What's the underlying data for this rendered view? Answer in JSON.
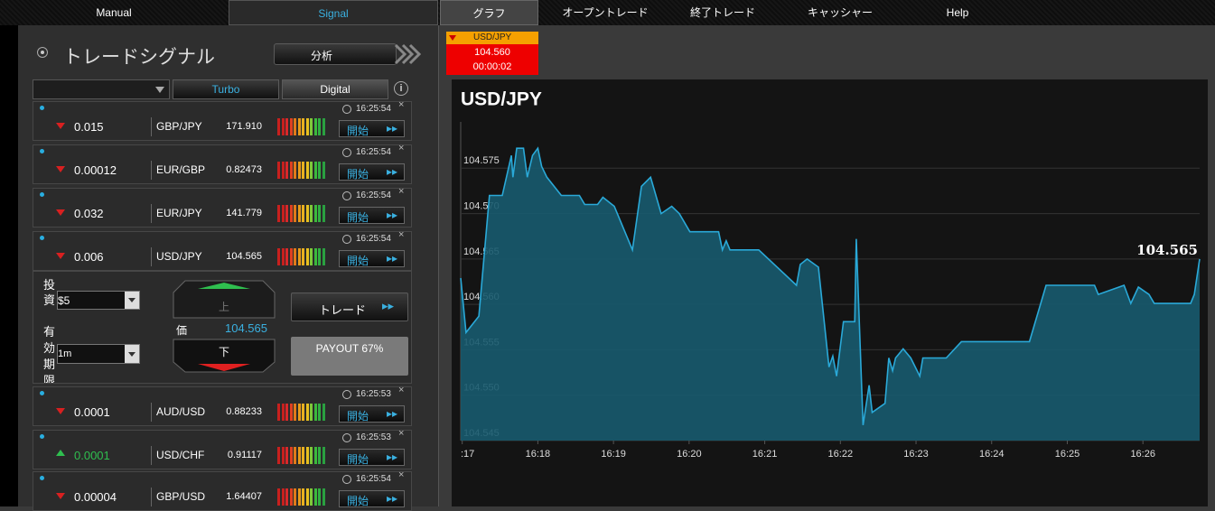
{
  "nav": {
    "tabs": [
      "Manual",
      "Signal",
      "グラフ",
      "オープントレード",
      "終了トレード",
      "キャッシャー",
      "Help"
    ]
  },
  "signals": {
    "title": "トレードシグナル",
    "analyze_button": "分析",
    "filters": [
      "Turbo",
      "Digital"
    ],
    "rows": [
      {
        "change": "0.015",
        "pair": "GBP/JPY",
        "price": "171.910",
        "time": "16:25:54",
        "button": "開始",
        "direction": "down"
      },
      {
        "change": "0.00012",
        "pair": "EUR/GBP",
        "price": "0.82473",
        "time": "16:25:54",
        "button": "開始",
        "direction": "down"
      },
      {
        "change": "0.032",
        "pair": "EUR/JPY",
        "price": "141.779",
        "time": "16:25:54",
        "button": "開始",
        "direction": "down"
      },
      {
        "change": "0.006",
        "pair": "USD/JPY",
        "price": "104.565",
        "time": "16:25:54",
        "button": "開始",
        "direction": "down"
      },
      {
        "change": "0.0001",
        "pair": "AUD/USD",
        "price": "0.88233",
        "time": "16:25:53",
        "button": "開始",
        "direction": "down"
      },
      {
        "change": "0.0001",
        "pair": "USD/CHF",
        "price": "0.91117",
        "time": "16:25:53",
        "button": "開始",
        "direction": "up"
      },
      {
        "change": "0.00004",
        "pair": "GBP/USD",
        "price": "1.64407",
        "time": "16:25:54",
        "button": "開始",
        "direction": "down"
      }
    ]
  },
  "trade_panel": {
    "investment_label": "投資",
    "investment": "$5",
    "expiry_label": "有効期限",
    "expiry": "1m",
    "up": "上",
    "price_label": "価",
    "price": "104.565",
    "down": "下",
    "trade_button": "トレード",
    "payout": "PAYOUT 67%"
  },
  "ticker": {
    "pair": "USD/JPY",
    "price": "104.560",
    "timer": "00:00:02"
  },
  "chart_data": {
    "type": "area",
    "title": "USD/JPY",
    "annotation": "104.565",
    "color": "#2aa9d8",
    "grid": true,
    "x": [
      976.98,
      977.05,
      977.22,
      977.36,
      977.53,
      977.65,
      977.67,
      977.72,
      977.81,
      977.86,
      977.93,
      978.0,
      978.05,
      978.12,
      978.31,
      978.55,
      978.62,
      978.79,
      978.86,
      979.01,
      979.25,
      979.37,
      979.49,
      979.63,
      979.77,
      979.87,
      980.01,
      980.39,
      980.44,
      980.49,
      980.54,
      980.92,
      981.42,
      981.47,
      981.56,
      981.71,
      981.85,
      981.9,
      981.95,
      982.04,
      982.19,
      982.21,
      982.3,
      982.38,
      982.42,
      982.59,
      982.64,
      982.69,
      982.73,
      982.83,
      982.93,
      983.05,
      983.09,
      983.4,
      983.6,
      984.5,
      984.72,
      985.36,
      985.41,
      985.75,
      985.84,
      985.94,
      986.08,
      986.15,
      986.63,
      986.68,
      986.75
    ],
    "values": [
      104.5629,
      104.5569,
      104.5587,
      104.572,
      104.572,
      104.5764,
      104.574,
      104.5772,
      104.5772,
      104.574,
      104.5764,
      104.5772,
      104.5752,
      104.574,
      104.572,
      104.572,
      104.571,
      104.571,
      104.5718,
      104.5708,
      104.566,
      104.573,
      104.574,
      104.57,
      104.5708,
      104.57,
      104.568,
      104.568,
      104.566,
      104.567,
      104.566,
      104.566,
      104.5621,
      104.5644,
      104.565,
      104.5641,
      104.5531,
      104.5543,
      104.5521,
      104.5581,
      104.5581,
      104.5672,
      104.5467,
      104.5511,
      104.5481,
      104.5491,
      104.5541,
      104.5527,
      104.5541,
      104.5551,
      104.5541,
      104.5521,
      104.5541,
      104.5541,
      104.5559,
      104.5559,
      104.5621,
      104.5621,
      104.5611,
      104.5621,
      104.5601,
      104.5619,
      104.5611,
      104.5601,
      104.5601,
      104.5611,
      104.565
    ],
    "xlim": [
      976.98,
      986.75
    ],
    "xticks": [
      {
        "value": 977,
        "label": ":17"
      },
      {
        "value": 978,
        "label": "16:18"
      },
      {
        "value": 979,
        "label": "16:19"
      },
      {
        "value": 980,
        "label": "16:20"
      },
      {
        "value": 981,
        "label": "16:21"
      },
      {
        "value": 982,
        "label": "16:22"
      },
      {
        "value": 983,
        "label": "16:23"
      },
      {
        "value": 984,
        "label": "16:24"
      },
      {
        "value": 985,
        "label": "16:25"
      },
      {
        "value": 986,
        "label": "16:26"
      }
    ],
    "ylim": [
      104.545,
      104.5801
    ],
    "yticks": [
      104.545,
      {
        "value": 104.55,
        "label": "104.550"
      },
      104.555,
      {
        "value": 104.56,
        "label": "104.560"
      },
      104.565,
      {
        "value": 104.57,
        "label": "104.570"
      },
      104.575
    ]
  }
}
